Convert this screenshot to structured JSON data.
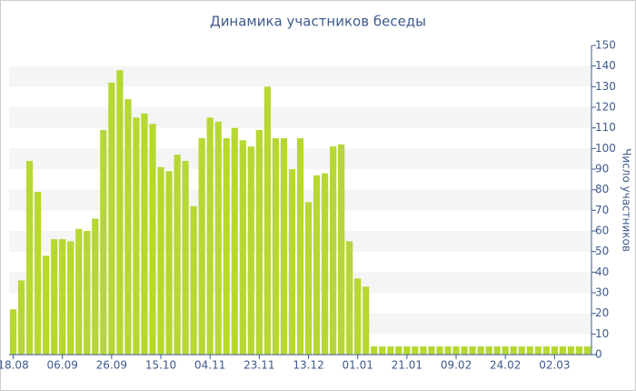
{
  "chart_data": {
    "type": "bar",
    "title": "Динамика участников беседы",
    "y_label": "Число участников",
    "categories": [
      "18.08",
      null,
      null,
      null,
      null,
      null,
      "06.09",
      null,
      null,
      null,
      null,
      null,
      "26.09",
      null,
      null,
      null,
      null,
      null,
      "15.10",
      null,
      null,
      null,
      null,
      null,
      "04.11",
      null,
      null,
      null,
      null,
      null,
      "23.11",
      null,
      null,
      null,
      null,
      null,
      "13.12",
      null,
      null,
      null,
      null,
      null,
      "01.01",
      null,
      null,
      null,
      null,
      null,
      "21.01",
      null,
      null,
      null,
      null,
      null,
      "09.02",
      null,
      null,
      null,
      null,
      null,
      "24.02",
      null,
      null,
      null,
      null,
      null,
      "02.03",
      null,
      null,
      null,
      null
    ],
    "values": [
      22,
      36,
      94,
      79,
      48,
      56,
      56,
      55,
      61,
      60,
      66,
      109,
      132,
      138,
      124,
      115,
      117,
      112,
      91,
      89,
      97,
      94,
      72,
      105,
      115,
      113,
      105,
      110,
      104,
      101,
      109,
      130,
      105,
      105,
      90,
      105,
      74,
      87,
      88,
      101,
      102,
      55,
      37,
      33,
      4,
      4,
      4,
      4,
      4,
      4,
      4,
      4,
      4,
      4,
      4,
      4,
      4,
      4,
      4,
      4,
      4,
      4,
      4,
      4,
      4,
      4,
      4,
      4,
      4,
      4,
      4
    ],
    "color": "#b5d833",
    "ylim": [
      0,
      150
    ],
    "yticks": [
      0,
      10,
      20,
      30,
      40,
      50,
      60,
      70,
      80,
      90,
      100,
      110,
      120,
      130,
      140,
      150
    ],
    "grid": true,
    "y_axis_side": "right"
  }
}
